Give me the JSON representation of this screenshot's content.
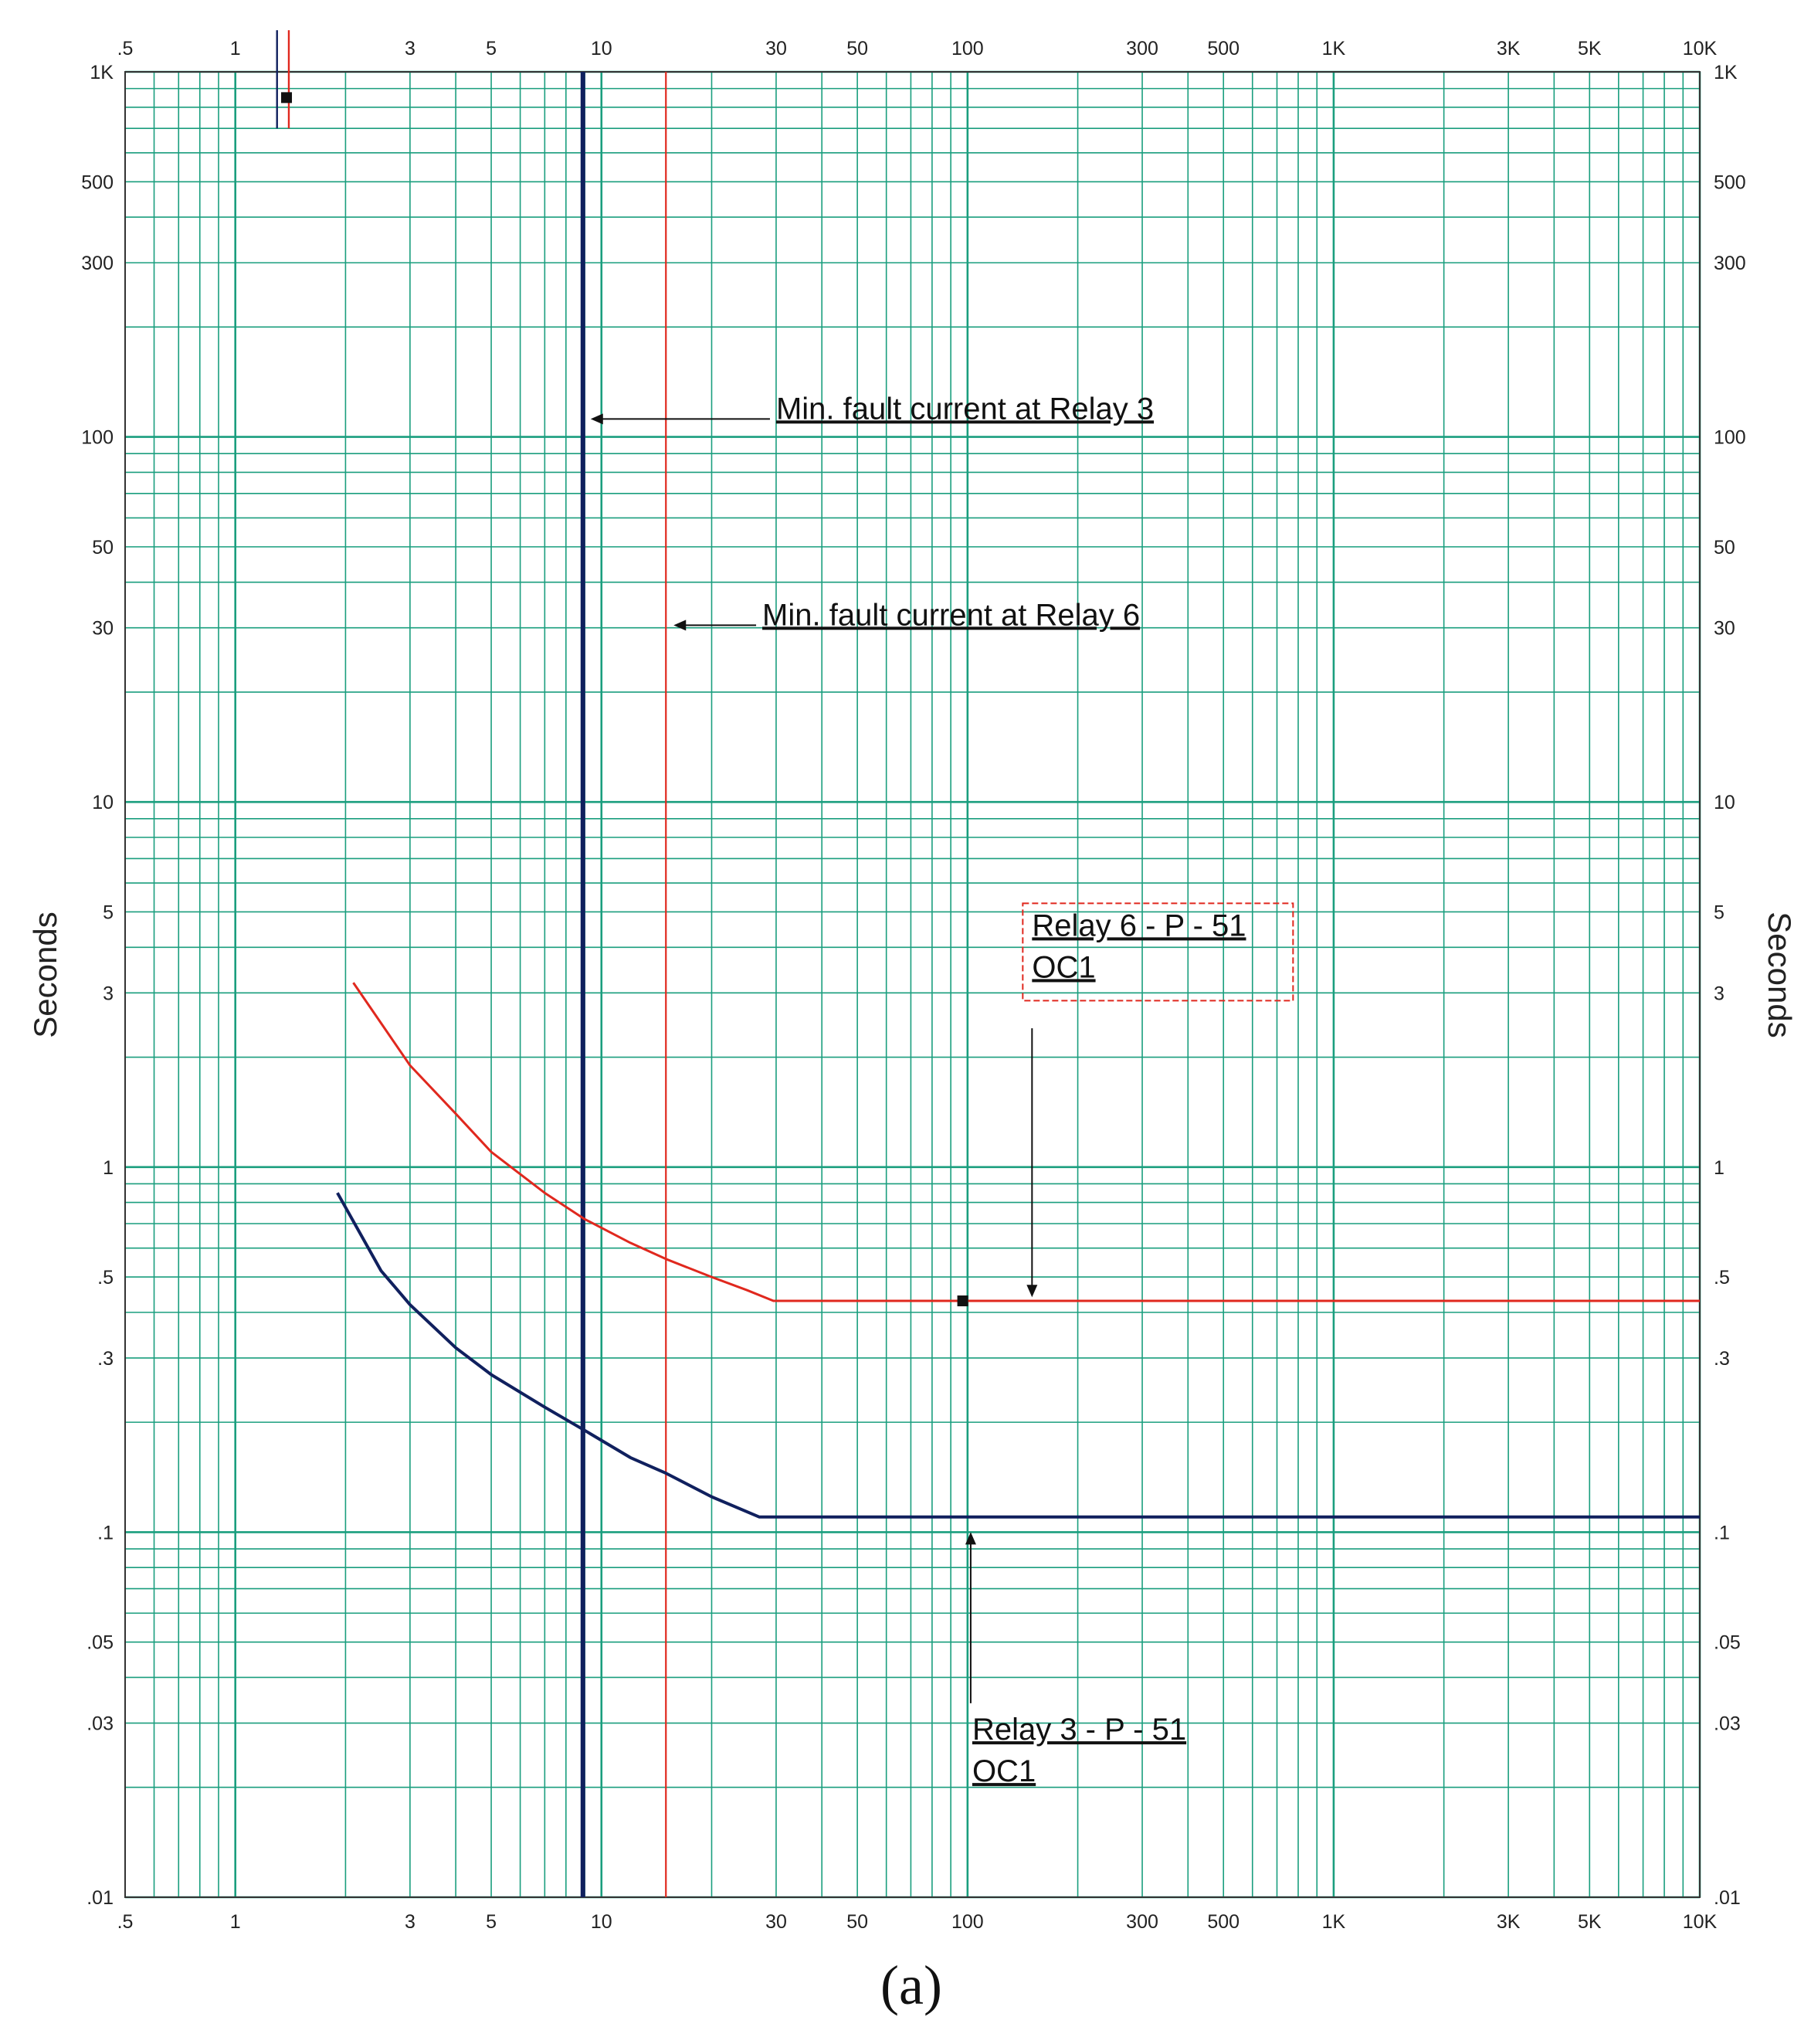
{
  "chart_data": {
    "type": "line",
    "title": "",
    "caption": "(a)",
    "xscale": "log",
    "yscale": "log",
    "xlim": [
      0.5,
      10000
    ],
    "ylim": [
      0.01,
      1000
    ],
    "grid": true,
    "colors": {
      "grid": "#1a9e7e",
      "relay3": "#10205e",
      "relay6": "#e0281e"
    },
    "x_tick_labels": [
      {
        "v": 0.5,
        "t": ".5"
      },
      {
        "v": 1,
        "t": "1"
      },
      {
        "v": 3,
        "t": "3"
      },
      {
        "v": 5,
        "t": "5"
      },
      {
        "v": 10,
        "t": "10"
      },
      {
        "v": 30,
        "t": "30"
      },
      {
        "v": 50,
        "t": "50"
      },
      {
        "v": 100,
        "t": "100"
      },
      {
        "v": 300,
        "t": "300"
      },
      {
        "v": 500,
        "t": "500"
      },
      {
        "v": 1000,
        "t": "1K"
      },
      {
        "v": 3000,
        "t": "3K"
      },
      {
        "v": 5000,
        "t": "5K"
      },
      {
        "v": 10000,
        "t": "10K"
      }
    ],
    "y_tick_labels": [
      {
        "v": 1000,
        "t": "1K"
      },
      {
        "v": 500,
        "t": "500"
      },
      {
        "v": 300,
        "t": "300"
      },
      {
        "v": 100,
        "t": "100"
      },
      {
        "v": 50,
        "t": "50"
      },
      {
        "v": 30,
        "t": "30"
      },
      {
        "v": 10,
        "t": "10"
      },
      {
        "v": 5,
        "t": "5"
      },
      {
        "v": 3,
        "t": "3"
      },
      {
        "v": 1,
        "t": "1"
      },
      {
        "v": 0.5,
        "t": ".5"
      },
      {
        "v": 0.3,
        "t": ".3"
      },
      {
        "v": 0.1,
        "t": ".1"
      },
      {
        "v": 0.05,
        "t": ".05"
      },
      {
        "v": 0.03,
        "t": ".03"
      },
      {
        "v": 0.01,
        "t": ".01"
      }
    ],
    "ylabel_left": "Seconds",
    "ylabel_right": "Seconds",
    "series": [
      {
        "key": "relay6",
        "x": [
          2.1,
          3,
          4,
          5,
          7,
          9,
          12,
          15,
          20,
          25,
          29.5,
          10000
        ],
        "y": [
          3.2,
          1.9,
          1.4,
          1.1,
          0.85,
          0.72,
          0.62,
          0.56,
          0.5,
          0.46,
          0.43,
          0.43
        ]
      },
      {
        "key": "relay3",
        "x": [
          1.9,
          2.5,
          3,
          4,
          5,
          7,
          9,
          12,
          15,
          20,
          27,
          10000
        ],
        "y": [
          0.85,
          0.52,
          0.42,
          0.32,
          0.27,
          0.22,
          0.19,
          0.16,
          0.145,
          0.125,
          0.11,
          0.11
        ]
      }
    ],
    "vertical_lines": [
      {
        "key": "relay3",
        "x": 8.9,
        "weight": "heavy"
      },
      {
        "key": "relay6",
        "x": 15,
        "weight": "light"
      }
    ],
    "start_markers": [
      {
        "key": "relay3",
        "x": 1.3,
        "y_from": 700,
        "y_to": 1300
      },
      {
        "key": "relay6",
        "x": 1.4,
        "y_from": 700,
        "y_to": 1300
      }
    ],
    "points": [
      {
        "x": 1.38,
        "y": 850
      },
      {
        "x": 97,
        "y": 0.43
      }
    ],
    "annotations": [
      {
        "lines": [
          "Min. fault current at Relay 3"
        ],
        "x": 30,
        "y": 112,
        "arrow_to": [
          8.9,
          112
        ]
      },
      {
        "lines": [
          "Min. fault current at Relay 6"
        ],
        "x": 27.5,
        "y": 30.5,
        "arrow_to": [
          15,
          30.5
        ]
      },
      {
        "lines": [
          "Relay 6 - P - 51",
          "OC1"
        ],
        "x": 150,
        "y": 4.3,
        "boxed": true,
        "arrow_from": [
          150,
          2.4
        ],
        "arrow_to": [
          150,
          0.44
        ]
      },
      {
        "lines": [
          "Relay 3 - P - 51",
          "OC1"
        ],
        "x": 103,
        "y": 0.027,
        "arrow_from": [
          102,
          0.034
        ],
        "arrow_to": [
          102,
          0.1
        ]
      }
    ]
  }
}
